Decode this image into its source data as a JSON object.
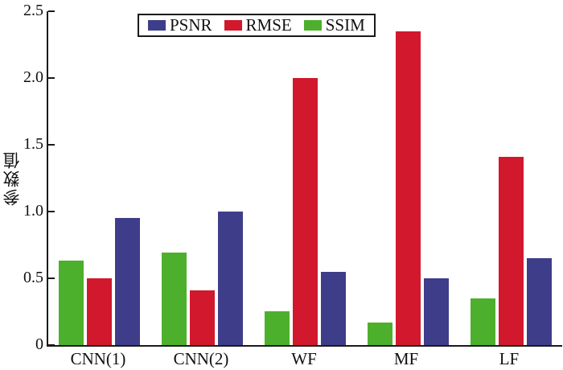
{
  "chart_data": {
    "type": "bar",
    "title": "",
    "ylabel": "参数值",
    "xlabel": "",
    "categories": [
      "CNN(1)",
      "CNN(2)",
      "WF",
      "MF",
      "LF"
    ],
    "series": [
      {
        "name": "SSIM",
        "color": "#4db02c",
        "values": [
          0.63,
          0.69,
          0.25,
          0.17,
          0.35
        ]
      },
      {
        "name": "RMSE",
        "color": "#d1182c",
        "values": [
          0.5,
          0.41,
          2.0,
          2.35,
          1.41
        ]
      },
      {
        "name": "PSNR",
        "color": "#3e3d8a",
        "values": [
          0.95,
          1.0,
          0.55,
          0.5,
          0.65
        ]
      }
    ],
    "legend_order": [
      "PSNR",
      "RMSE",
      "SSIM"
    ],
    "legend_position": "top-center",
    "ylim": [
      0,
      2.5
    ],
    "yticks": [
      0,
      0.5,
      1.0,
      1.5,
      2.0,
      2.5
    ],
    "ytick_labels": [
      "0",
      "0.5",
      "1.0",
      "1.5",
      "2.0",
      "2.5"
    ],
    "grid": false,
    "axis_color": "#1a1a1a",
    "background_color": "#ffffff"
  }
}
